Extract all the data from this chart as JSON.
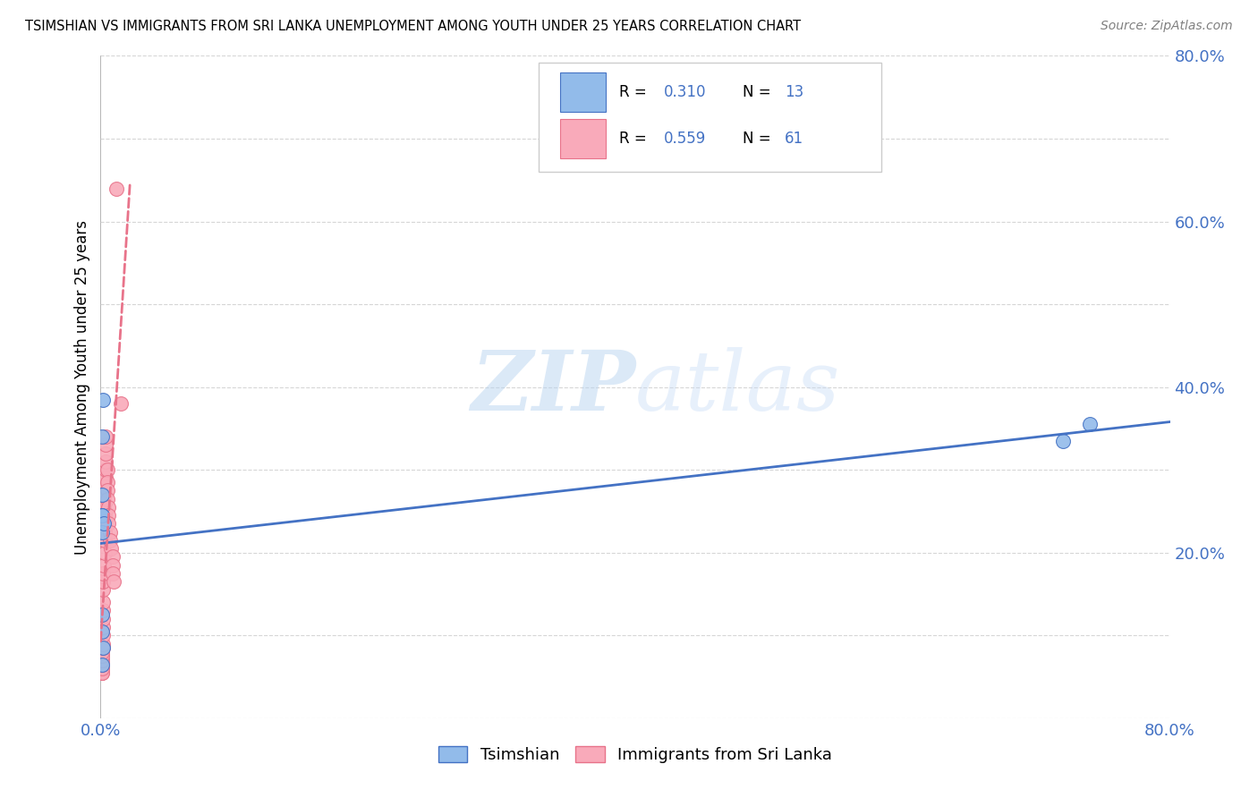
{
  "title": "TSIMSHIAN VS IMMIGRANTS FROM SRI LANKA UNEMPLOYMENT AMONG YOUTH UNDER 25 YEARS CORRELATION CHART",
  "source": "Source: ZipAtlas.com",
  "ylabel": "Unemployment Among Youth under 25 years",
  "xlim": [
    0.0,
    0.8
  ],
  "ylim": [
    0.0,
    0.8
  ],
  "ytick_labels_right": [
    "80.0%",
    "60.0%",
    "40.0%",
    "20.0%"
  ],
  "ytick_positions_right": [
    0.8,
    0.6,
    0.4,
    0.2
  ],
  "legend_entries": [
    {
      "label": "Tsimshian",
      "color": "#92BBEA",
      "R": "0.310",
      "N": "13"
    },
    {
      "label": "Immigrants from Sri Lanka",
      "color": "#F9AABA",
      "R": "0.559",
      "N": "61"
    }
  ],
  "tsimshian_x": [
    0.0008,
    0.001,
    0.0015,
    0.001,
    0.0012,
    0.001,
    0.001,
    0.001,
    0.001,
    0.0025,
    0.002,
    0.72,
    0.74
  ],
  "tsimshian_y": [
    0.245,
    0.245,
    0.385,
    0.34,
    0.27,
    0.225,
    0.105,
    0.125,
    0.065,
    0.235,
    0.085,
    0.335,
    0.355
  ],
  "srilanka_x": [
    0.0003,
    0.0004,
    0.0005,
    0.0005,
    0.0005,
    0.0006,
    0.0006,
    0.0007,
    0.0008,
    0.0008,
    0.0009,
    0.001,
    0.001,
    0.001,
    0.001,
    0.001,
    0.001,
    0.0012,
    0.0013,
    0.0014,
    0.0015,
    0.0016,
    0.0017,
    0.002,
    0.002,
    0.002,
    0.002,
    0.002,
    0.002,
    0.0025,
    0.003,
    0.003,
    0.003,
    0.003,
    0.003,
    0.003,
    0.003,
    0.003,
    0.003,
    0.0035,
    0.004,
    0.004,
    0.004,
    0.004,
    0.004,
    0.005,
    0.005,
    0.005,
    0.005,
    0.006,
    0.006,
    0.006,
    0.007,
    0.007,
    0.008,
    0.009,
    0.009,
    0.009,
    0.01,
    0.012,
    0.015
  ],
  "srilanka_y": [
    0.055,
    0.06,
    0.055,
    0.06,
    0.065,
    0.055,
    0.06,
    0.06,
    0.055,
    0.065,
    0.065,
    0.055,
    0.06,
    0.065,
    0.07,
    0.07,
    0.075,
    0.075,
    0.08,
    0.085,
    0.09,
    0.1,
    0.11,
    0.12,
    0.13,
    0.14,
    0.155,
    0.165,
    0.175,
    0.185,
    0.2,
    0.215,
    0.225,
    0.235,
    0.245,
    0.25,
    0.26,
    0.27,
    0.28,
    0.29,
    0.3,
    0.31,
    0.32,
    0.33,
    0.34,
    0.3,
    0.285,
    0.275,
    0.265,
    0.255,
    0.245,
    0.235,
    0.225,
    0.215,
    0.205,
    0.195,
    0.185,
    0.175,
    0.165,
    0.64,
    0.38
  ],
  "tsimshian_line_color": "#4472c4",
  "srilanka_line_color": "#E8738A",
  "blue_color": "#4472c4",
  "background_color": "#ffffff",
  "watermark_zip": "ZIP",
  "watermark_atlas": "atlas",
  "grid_color": "#cccccc"
}
